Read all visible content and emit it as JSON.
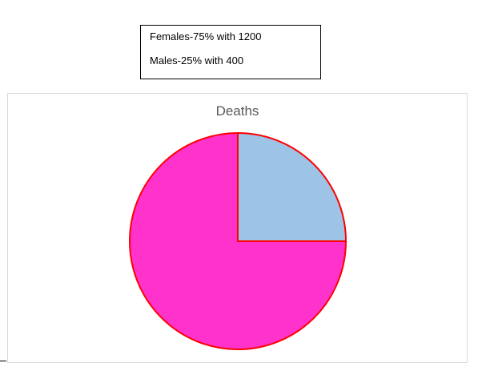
{
  "notes": {
    "line1": "Females-75% with 1200",
    "line2": "Males-25% with 400"
  },
  "chart_data": {
    "type": "pie",
    "title": "Deaths",
    "categories": [
      "Males",
      "Females"
    ],
    "values": [
      400,
      1200
    ],
    "colors": [
      "#9dc3e6",
      "#ff33cc"
    ],
    "border_color": "#ff0000",
    "legend": "none"
  }
}
